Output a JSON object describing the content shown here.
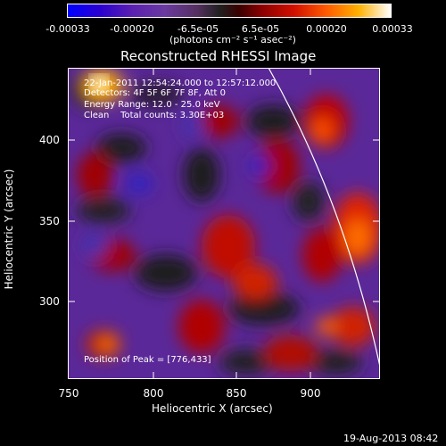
{
  "colorbar": {
    "ticks": [
      "-0.00033",
      "-0.00020",
      "-6.5e-05",
      "6.5e-05",
      "0.00020",
      "0.00033"
    ],
    "unit": "(photons cm⁻² s⁻¹ asec⁻²)"
  },
  "title": "Reconstructed RHESSI Image",
  "info": {
    "line1": "22-Jan-2011 12:54:24.000 to 12:57:12.000",
    "line2": "Detectors: 4F 5F 6F 7F 8F, Att 0",
    "line3": "Energy Range: 12.0 - 25.0 keV",
    "line4": "Clean    Total counts: 3.30E+03",
    "peak": "Position of Peak = [776,433]"
  },
  "axes": {
    "xlabel": "Heliocentric X (arcsec)",
    "ylabel": "Heliocentric Y (arcsec)",
    "xticks": [
      "750",
      "800",
      "850",
      "900"
    ],
    "yticks": [
      "400",
      "350",
      "300"
    ]
  },
  "datestamp": "19-Aug-2013 08:42"
}
